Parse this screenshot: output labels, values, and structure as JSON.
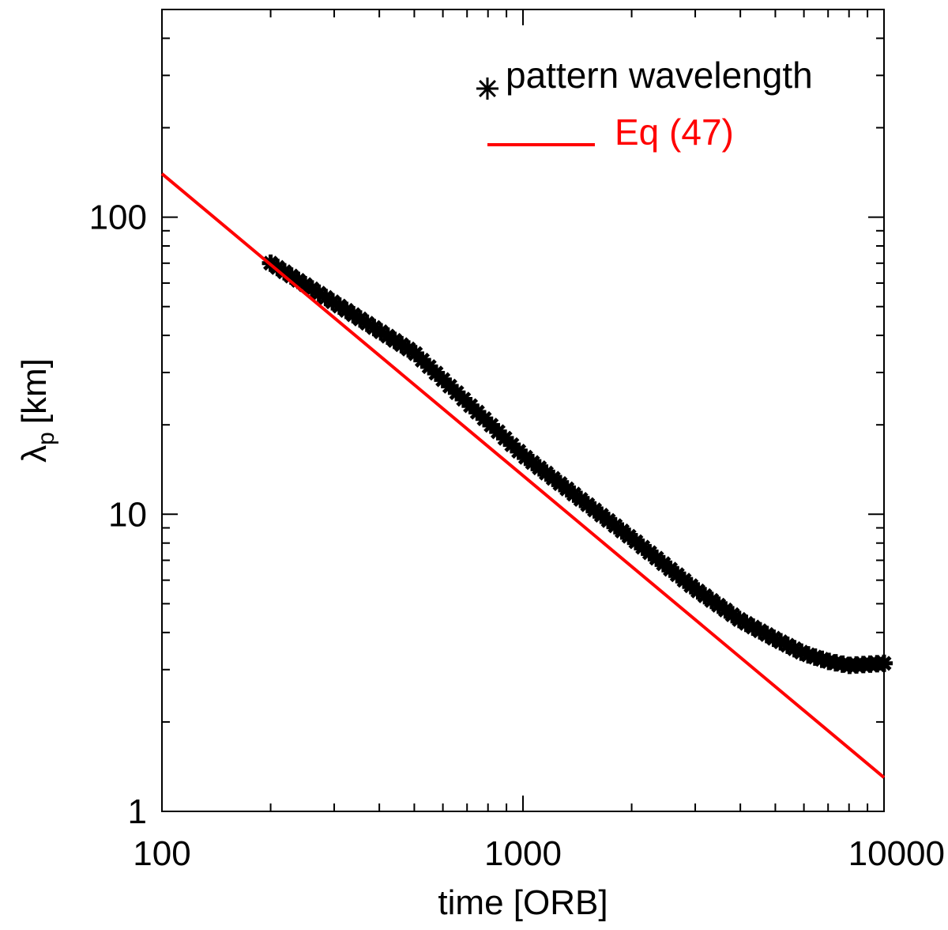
{
  "chart_data": {
    "type": "scatter",
    "xscale": "log",
    "yscale": "log",
    "xlim": [
      100,
      10000
    ],
    "ylim": [
      1,
      500
    ],
    "xlabel": "time [ORB]",
    "ylabel": {
      "symbol": "λ",
      "subscript": "p",
      "unit": "[km]"
    },
    "x_tick_labels": [
      {
        "value": 100,
        "label": "100"
      },
      {
        "value": 1000,
        "label": "1000"
      },
      {
        "value": 10000,
        "label": "10000"
      }
    ],
    "y_tick_labels": [
      {
        "value": 1,
        "label": "1"
      },
      {
        "value": 10,
        "label": "10"
      },
      {
        "value": 100,
        "label": "100"
      }
    ],
    "series": [
      {
        "name": "pattern wavelength",
        "kind": "scatter",
        "marker": "asterisk",
        "color": "#000000",
        "x_range": [
          200,
          10000
        ],
        "count": 90,
        "key_points": [
          [
            200,
            70
          ],
          [
            500,
            35
          ],
          [
            1000,
            15.8
          ],
          [
            2000,
            8.3
          ],
          [
            3000,
            5.6
          ],
          [
            4000,
            4.4
          ],
          [
            5000,
            3.8
          ],
          [
            6000,
            3.4
          ],
          [
            7000,
            3.2
          ],
          [
            8000,
            3.1
          ],
          [
            10000,
            3.15
          ]
        ]
      },
      {
        "name": "Eq (47)",
        "kind": "line",
        "color": "#ff0000",
        "points": [
          [
            100,
            140
          ],
          [
            10000,
            1.3
          ]
        ]
      }
    ],
    "legend": {
      "position": "top-right",
      "entries": [
        "pattern wavelength",
        "Eq (47)"
      ]
    }
  }
}
